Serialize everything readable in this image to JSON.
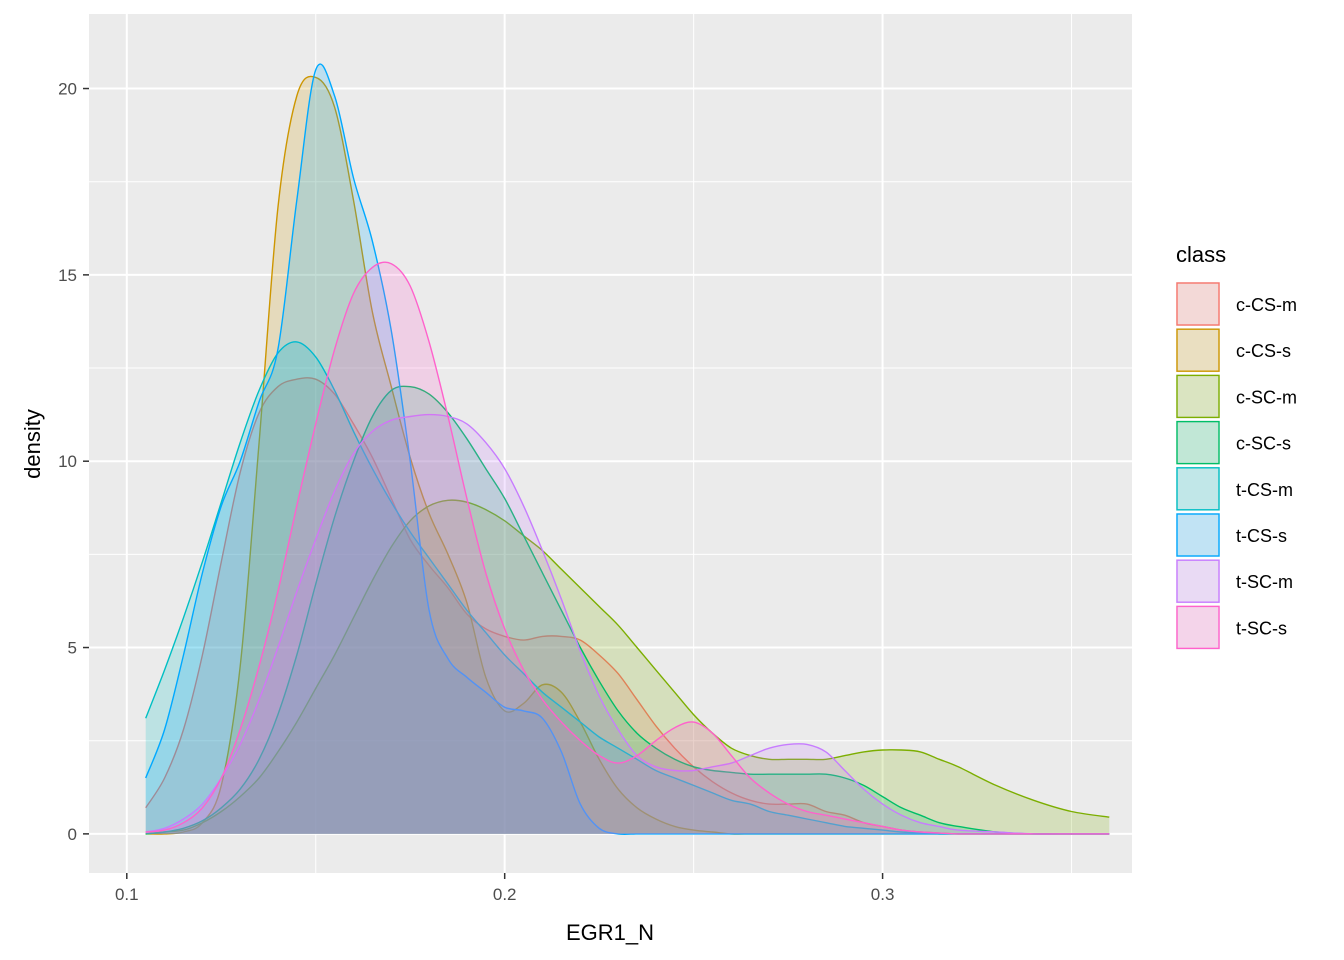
{
  "chart_data": {
    "type": "area",
    "title": "",
    "xlabel": "EGR1_N",
    "ylabel": "density",
    "xlim": [
      0.09,
      0.366
    ],
    "ylim": [
      -1.05,
      22.0
    ],
    "x_ticks": [
      0.1,
      0.2,
      0.3
    ],
    "x_tick_labels": [
      "0.1",
      "0.2",
      "0.3"
    ],
    "y_ticks": [
      0,
      5,
      10,
      15,
      20
    ],
    "y_tick_labels": [
      "0",
      "5",
      "10",
      "15",
      "20"
    ],
    "grid": true,
    "legend": {
      "title": "class",
      "position": "right"
    },
    "series": [
      {
        "name": "c-CS-m",
        "color": "#F8766D",
        "x": [
          0.105,
          0.11,
          0.115,
          0.12,
          0.125,
          0.13,
          0.135,
          0.14,
          0.145,
          0.15,
          0.155,
          0.16,
          0.165,
          0.17,
          0.175,
          0.18,
          0.185,
          0.19,
          0.195,
          0.2,
          0.205,
          0.21,
          0.215,
          0.22,
          0.225,
          0.23,
          0.235,
          0.24,
          0.245,
          0.25,
          0.255,
          0.26,
          0.265,
          0.27,
          0.275,
          0.28,
          0.285,
          0.29,
          0.295,
          0.3,
          0.305,
          0.31,
          0.315,
          0.32,
          0.33,
          0.34,
          0.35,
          0.36
        ],
        "y": [
          0.7,
          1.5,
          2.8,
          4.8,
          7.3,
          9.7,
          11.3,
          12.0,
          12.2,
          12.2,
          11.8,
          11.0,
          10.1,
          9.0,
          7.9,
          7.2,
          6.6,
          5.9,
          5.5,
          5.3,
          5.2,
          5.3,
          5.3,
          5.2,
          4.8,
          4.3,
          3.6,
          2.9,
          2.3,
          1.8,
          1.4,
          1.1,
          0.9,
          0.8,
          0.8,
          0.8,
          0.6,
          0.5,
          0.3,
          0.2,
          0.1,
          0.05,
          0.02,
          0.0,
          0.0,
          0.0,
          0.0,
          0.0
        ]
      },
      {
        "name": "c-CS-s",
        "color": "#CD9600",
        "x": [
          0.105,
          0.11,
          0.115,
          0.12,
          0.125,
          0.13,
          0.135,
          0.14,
          0.145,
          0.15,
          0.155,
          0.16,
          0.165,
          0.17,
          0.175,
          0.18,
          0.185,
          0.19,
          0.195,
          0.2,
          0.205,
          0.21,
          0.215,
          0.22,
          0.225,
          0.23,
          0.235,
          0.24,
          0.245,
          0.25,
          0.255,
          0.26,
          0.265,
          0.27,
          0.275,
          0.28,
          0.285,
          0.29,
          0.295,
          0.3,
          0.305,
          0.31,
          0.315,
          0.32,
          0.33,
          0.34,
          0.35,
          0.36
        ],
        "y": [
          0.0,
          0.0,
          0.05,
          0.3,
          1.3,
          4.5,
          10.5,
          16.8,
          19.8,
          20.3,
          19.5,
          17.0,
          14.0,
          12.0,
          10.1,
          8.6,
          7.5,
          6.2,
          4.2,
          3.3,
          3.5,
          4.0,
          3.8,
          3.0,
          2.0,
          1.2,
          0.7,
          0.4,
          0.2,
          0.1,
          0.05,
          0.0,
          0.0,
          0.0,
          0.0,
          0.0,
          0.0,
          0.0,
          0.0,
          0.0,
          0.0,
          0.0,
          0.0,
          0.0,
          0.0,
          0.0,
          0.0,
          0.0
        ]
      },
      {
        "name": "c-SC-m",
        "color": "#7CAE00",
        "x": [
          0.105,
          0.11,
          0.115,
          0.12,
          0.125,
          0.13,
          0.135,
          0.14,
          0.145,
          0.15,
          0.155,
          0.16,
          0.165,
          0.17,
          0.175,
          0.18,
          0.185,
          0.19,
          0.195,
          0.2,
          0.205,
          0.21,
          0.215,
          0.22,
          0.225,
          0.23,
          0.235,
          0.24,
          0.245,
          0.25,
          0.255,
          0.26,
          0.265,
          0.27,
          0.275,
          0.28,
          0.285,
          0.29,
          0.295,
          0.3,
          0.305,
          0.31,
          0.315,
          0.32,
          0.33,
          0.34,
          0.35,
          0.36
        ],
        "y": [
          0.0,
          0.05,
          0.1,
          0.3,
          0.6,
          1.0,
          1.5,
          2.2,
          3.0,
          3.9,
          4.8,
          5.8,
          6.8,
          7.7,
          8.4,
          8.8,
          8.95,
          8.9,
          8.7,
          8.4,
          8.0,
          7.6,
          7.1,
          6.6,
          6.1,
          5.6,
          5.0,
          4.4,
          3.8,
          3.2,
          2.7,
          2.3,
          2.1,
          2.0,
          2.0,
          2.0,
          2.0,
          2.1,
          2.2,
          2.25,
          2.25,
          2.2,
          2.0,
          1.8,
          1.3,
          0.9,
          0.6,
          0.45
        ]
      },
      {
        "name": "c-SC-s",
        "color": "#00BE67",
        "x": [
          0.105,
          0.11,
          0.115,
          0.12,
          0.125,
          0.13,
          0.135,
          0.14,
          0.145,
          0.15,
          0.155,
          0.16,
          0.165,
          0.17,
          0.175,
          0.18,
          0.185,
          0.19,
          0.195,
          0.2,
          0.205,
          0.21,
          0.215,
          0.22,
          0.225,
          0.23,
          0.235,
          0.24,
          0.245,
          0.25,
          0.255,
          0.26,
          0.265,
          0.27,
          0.275,
          0.28,
          0.285,
          0.29,
          0.295,
          0.3,
          0.305,
          0.31,
          0.315,
          0.32,
          0.33,
          0.34,
          0.35,
          0.36
        ],
        "y": [
          0.0,
          0.05,
          0.15,
          0.35,
          0.7,
          1.2,
          2.0,
          3.2,
          4.8,
          6.7,
          8.5,
          10.0,
          11.2,
          11.9,
          12.0,
          11.8,
          11.3,
          10.6,
          9.8,
          9.0,
          8.0,
          7.0,
          6.0,
          5.0,
          4.1,
          3.3,
          2.7,
          2.3,
          2.0,
          1.8,
          1.7,
          1.65,
          1.6,
          1.6,
          1.6,
          1.6,
          1.6,
          1.5,
          1.3,
          1.0,
          0.7,
          0.5,
          0.3,
          0.2,
          0.05,
          0.0,
          0.0,
          0.0
        ]
      },
      {
        "name": "t-CS-m",
        "color": "#00BFC4",
        "x": [
          0.105,
          0.11,
          0.115,
          0.12,
          0.125,
          0.13,
          0.135,
          0.14,
          0.145,
          0.15,
          0.155,
          0.16,
          0.165,
          0.17,
          0.175,
          0.18,
          0.185,
          0.19,
          0.195,
          0.2,
          0.205,
          0.21,
          0.215,
          0.22,
          0.225,
          0.23,
          0.235,
          0.24,
          0.245,
          0.25,
          0.255,
          0.26,
          0.265,
          0.27,
          0.275,
          0.28,
          0.285,
          0.29,
          0.295,
          0.3,
          0.305,
          0.31,
          0.315,
          0.32,
          0.33,
          0.34,
          0.35,
          0.36
        ],
        "y": [
          3.1,
          4.4,
          5.8,
          7.3,
          8.9,
          10.5,
          11.9,
          12.9,
          13.2,
          12.8,
          11.9,
          10.8,
          9.8,
          8.9,
          8.1,
          7.4,
          6.7,
          6.0,
          5.4,
          4.8,
          4.3,
          3.8,
          3.4,
          3.0,
          2.6,
          2.3,
          2.0,
          1.7,
          1.5,
          1.3,
          1.1,
          0.9,
          0.8,
          0.6,
          0.5,
          0.4,
          0.3,
          0.2,
          0.15,
          0.1,
          0.05,
          0.02,
          0.0,
          0.0,
          0.0,
          0.0,
          0.0,
          0.0
        ]
      },
      {
        "name": "t-CS-s",
        "color": "#00A9FF",
        "x": [
          0.105,
          0.11,
          0.115,
          0.12,
          0.125,
          0.13,
          0.135,
          0.14,
          0.145,
          0.15,
          0.155,
          0.16,
          0.165,
          0.17,
          0.175,
          0.18,
          0.185,
          0.19,
          0.195,
          0.2,
          0.205,
          0.21,
          0.215,
          0.22,
          0.225,
          0.23,
          0.235,
          0.24,
          0.245,
          0.25,
          0.255,
          0.26,
          0.265,
          0.27,
          0.275,
          0.28,
          0.285,
          0.29,
          0.295,
          0.3,
          0.305,
          0.31,
          0.315,
          0.32,
          0.33,
          0.34,
          0.35,
          0.36
        ],
        "y": [
          1.5,
          2.8,
          4.8,
          7.0,
          8.8,
          10.0,
          11.6,
          13.0,
          17.0,
          20.5,
          19.8,
          17.6,
          15.9,
          13.5,
          10.0,
          6.0,
          4.7,
          4.2,
          3.8,
          3.4,
          3.3,
          3.1,
          2.2,
          0.8,
          0.15,
          0.0,
          0.0,
          0.0,
          0.0,
          0.0,
          0.0,
          0.0,
          0.0,
          0.0,
          0.0,
          0.0,
          0.0,
          0.0,
          0.0,
          0.0,
          0.0,
          0.0,
          0.0,
          0.0,
          0.0,
          0.0,
          0.0,
          0.0
        ]
      },
      {
        "name": "t-SC-m",
        "color": "#C77CFF",
        "x": [
          0.105,
          0.11,
          0.115,
          0.12,
          0.125,
          0.13,
          0.135,
          0.14,
          0.145,
          0.15,
          0.155,
          0.16,
          0.165,
          0.17,
          0.175,
          0.18,
          0.185,
          0.19,
          0.195,
          0.2,
          0.205,
          0.21,
          0.215,
          0.22,
          0.225,
          0.23,
          0.235,
          0.24,
          0.245,
          0.25,
          0.255,
          0.26,
          0.265,
          0.27,
          0.275,
          0.28,
          0.285,
          0.29,
          0.295,
          0.3,
          0.305,
          0.31,
          0.315,
          0.32,
          0.33,
          0.34,
          0.35,
          0.36
        ],
        "y": [
          0.05,
          0.15,
          0.4,
          0.8,
          1.5,
          2.4,
          3.6,
          5.0,
          6.5,
          7.9,
          9.2,
          10.2,
          10.8,
          11.1,
          11.2,
          11.25,
          11.2,
          11.0,
          10.5,
          9.8,
          8.8,
          7.6,
          6.3,
          4.9,
          3.7,
          2.8,
          2.1,
          1.8,
          1.7,
          1.7,
          1.8,
          1.9,
          2.1,
          2.3,
          2.4,
          2.4,
          2.2,
          1.7,
          1.2,
          0.8,
          0.5,
          0.3,
          0.2,
          0.1,
          0.05,
          0.0,
          0.0,
          0.0
        ]
      },
      {
        "name": "t-SC-s",
        "color": "#FF61CC",
        "x": [
          0.105,
          0.11,
          0.115,
          0.12,
          0.125,
          0.13,
          0.135,
          0.14,
          0.145,
          0.15,
          0.155,
          0.16,
          0.165,
          0.17,
          0.175,
          0.18,
          0.185,
          0.19,
          0.195,
          0.2,
          0.205,
          0.21,
          0.215,
          0.22,
          0.225,
          0.23,
          0.235,
          0.24,
          0.245,
          0.25,
          0.255,
          0.26,
          0.265,
          0.27,
          0.275,
          0.28,
          0.285,
          0.29,
          0.295,
          0.3,
          0.305,
          0.31,
          0.315,
          0.32,
          0.33,
          0.34,
          0.35,
          0.36
        ],
        "y": [
          0.05,
          0.1,
          0.3,
          0.7,
          1.5,
          2.8,
          4.5,
          6.5,
          8.8,
          11.0,
          13.0,
          14.5,
          15.2,
          15.3,
          14.7,
          13.2,
          11.2,
          9.0,
          7.0,
          5.5,
          4.4,
          3.6,
          3.0,
          2.5,
          2.1,
          1.9,
          2.1,
          2.5,
          2.85,
          3.0,
          2.7,
          2.1,
          1.5,
          1.1,
          0.8,
          0.6,
          0.5,
          0.4,
          0.3,
          0.2,
          0.1,
          0.05,
          0.02,
          0.0,
          0.0,
          0.0,
          0.0,
          0.0
        ]
      }
    ]
  }
}
